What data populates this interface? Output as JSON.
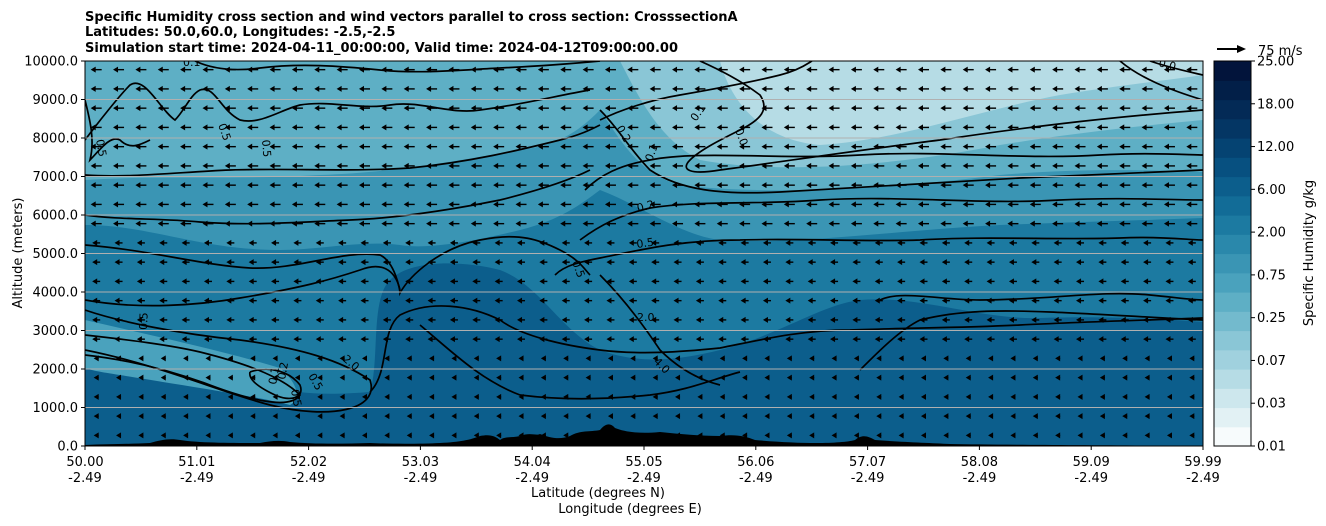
{
  "chart_data": {
    "type": "heatmap",
    "title_lines": [
      "Specific Humidity cross section and wind vectors parallel to cross section: CrosssectionA",
      "Latitudes: 50.0,60.0, Longitudes: -2.5,-2.5",
      "Simulation start time: 2024-04-11_00:00:00, Valid time: 2024-04-12T09:00:00.00"
    ],
    "ylabel": "Altitude (meters)",
    "xlabel_primary": "Latitude (degrees N)",
    "xlabel_secondary": "Longitude (degrees E)",
    "ylim": [
      0,
      10000
    ],
    "y_ticks": [
      "0.0",
      "1000.0",
      "2000.0",
      "3000.0",
      "4000.0",
      "5000.0",
      "6000.0",
      "7000.0",
      "8000.0",
      "9000.0",
      "10000.0"
    ],
    "x_ticks": [
      {
        "lat": "50.00",
        "lon": "-2.49"
      },
      {
        "lat": "51.01",
        "lon": "-2.49"
      },
      {
        "lat": "52.02",
        "lon": "-2.49"
      },
      {
        "lat": "53.03",
        "lon": "-2.49"
      },
      {
        "lat": "54.04",
        "lon": "-2.49"
      },
      {
        "lat": "55.05",
        "lon": "-2.49"
      },
      {
        "lat": "56.06",
        "lon": "-2.49"
      },
      {
        "lat": "57.07",
        "lon": "-2.49"
      },
      {
        "lat": "58.08",
        "lon": "-2.49"
      },
      {
        "lat": "59.09",
        "lon": "-2.49"
      },
      {
        "lat": "59.99",
        "lon": "-2.49"
      }
    ],
    "grid": true,
    "colorbar": {
      "label": "Specific Humidity g/kg",
      "tick_labels": [
        "0.01",
        "0.03",
        "0.07",
        "0.25",
        "0.75",
        "2.00",
        "6.00",
        "12.00",
        "18.00",
        "25.00"
      ],
      "colors": [
        "#f7fbfc",
        "#e2f1f4",
        "#cde7ed",
        "#b6dce5",
        "#a0d1de",
        "#8ac6d6",
        "#73bacd",
        "#5eafc5",
        "#4aa2bd",
        "#3a95b4",
        "#2a88ab",
        "#1c7aa1",
        "#126c97",
        "#0c5e8c",
        "#075080",
        "#054372",
        "#043664",
        "#032a56",
        "#021f48",
        "#02143b"
      ]
    },
    "wind_key": {
      "label": "75 m/s"
    },
    "contour_labels": [
      "0.1",
      "0.5",
      "0.5",
      "0.5",
      "0.5",
      "0.1",
      "0.2",
      "0.1",
      "0.0",
      "0.2",
      "0.5",
      "0.5",
      "2.0",
      "4.0",
      "2.0",
      "0.5",
      "0.5",
      "0.1",
      "0.2",
      "0.0"
    ]
  }
}
